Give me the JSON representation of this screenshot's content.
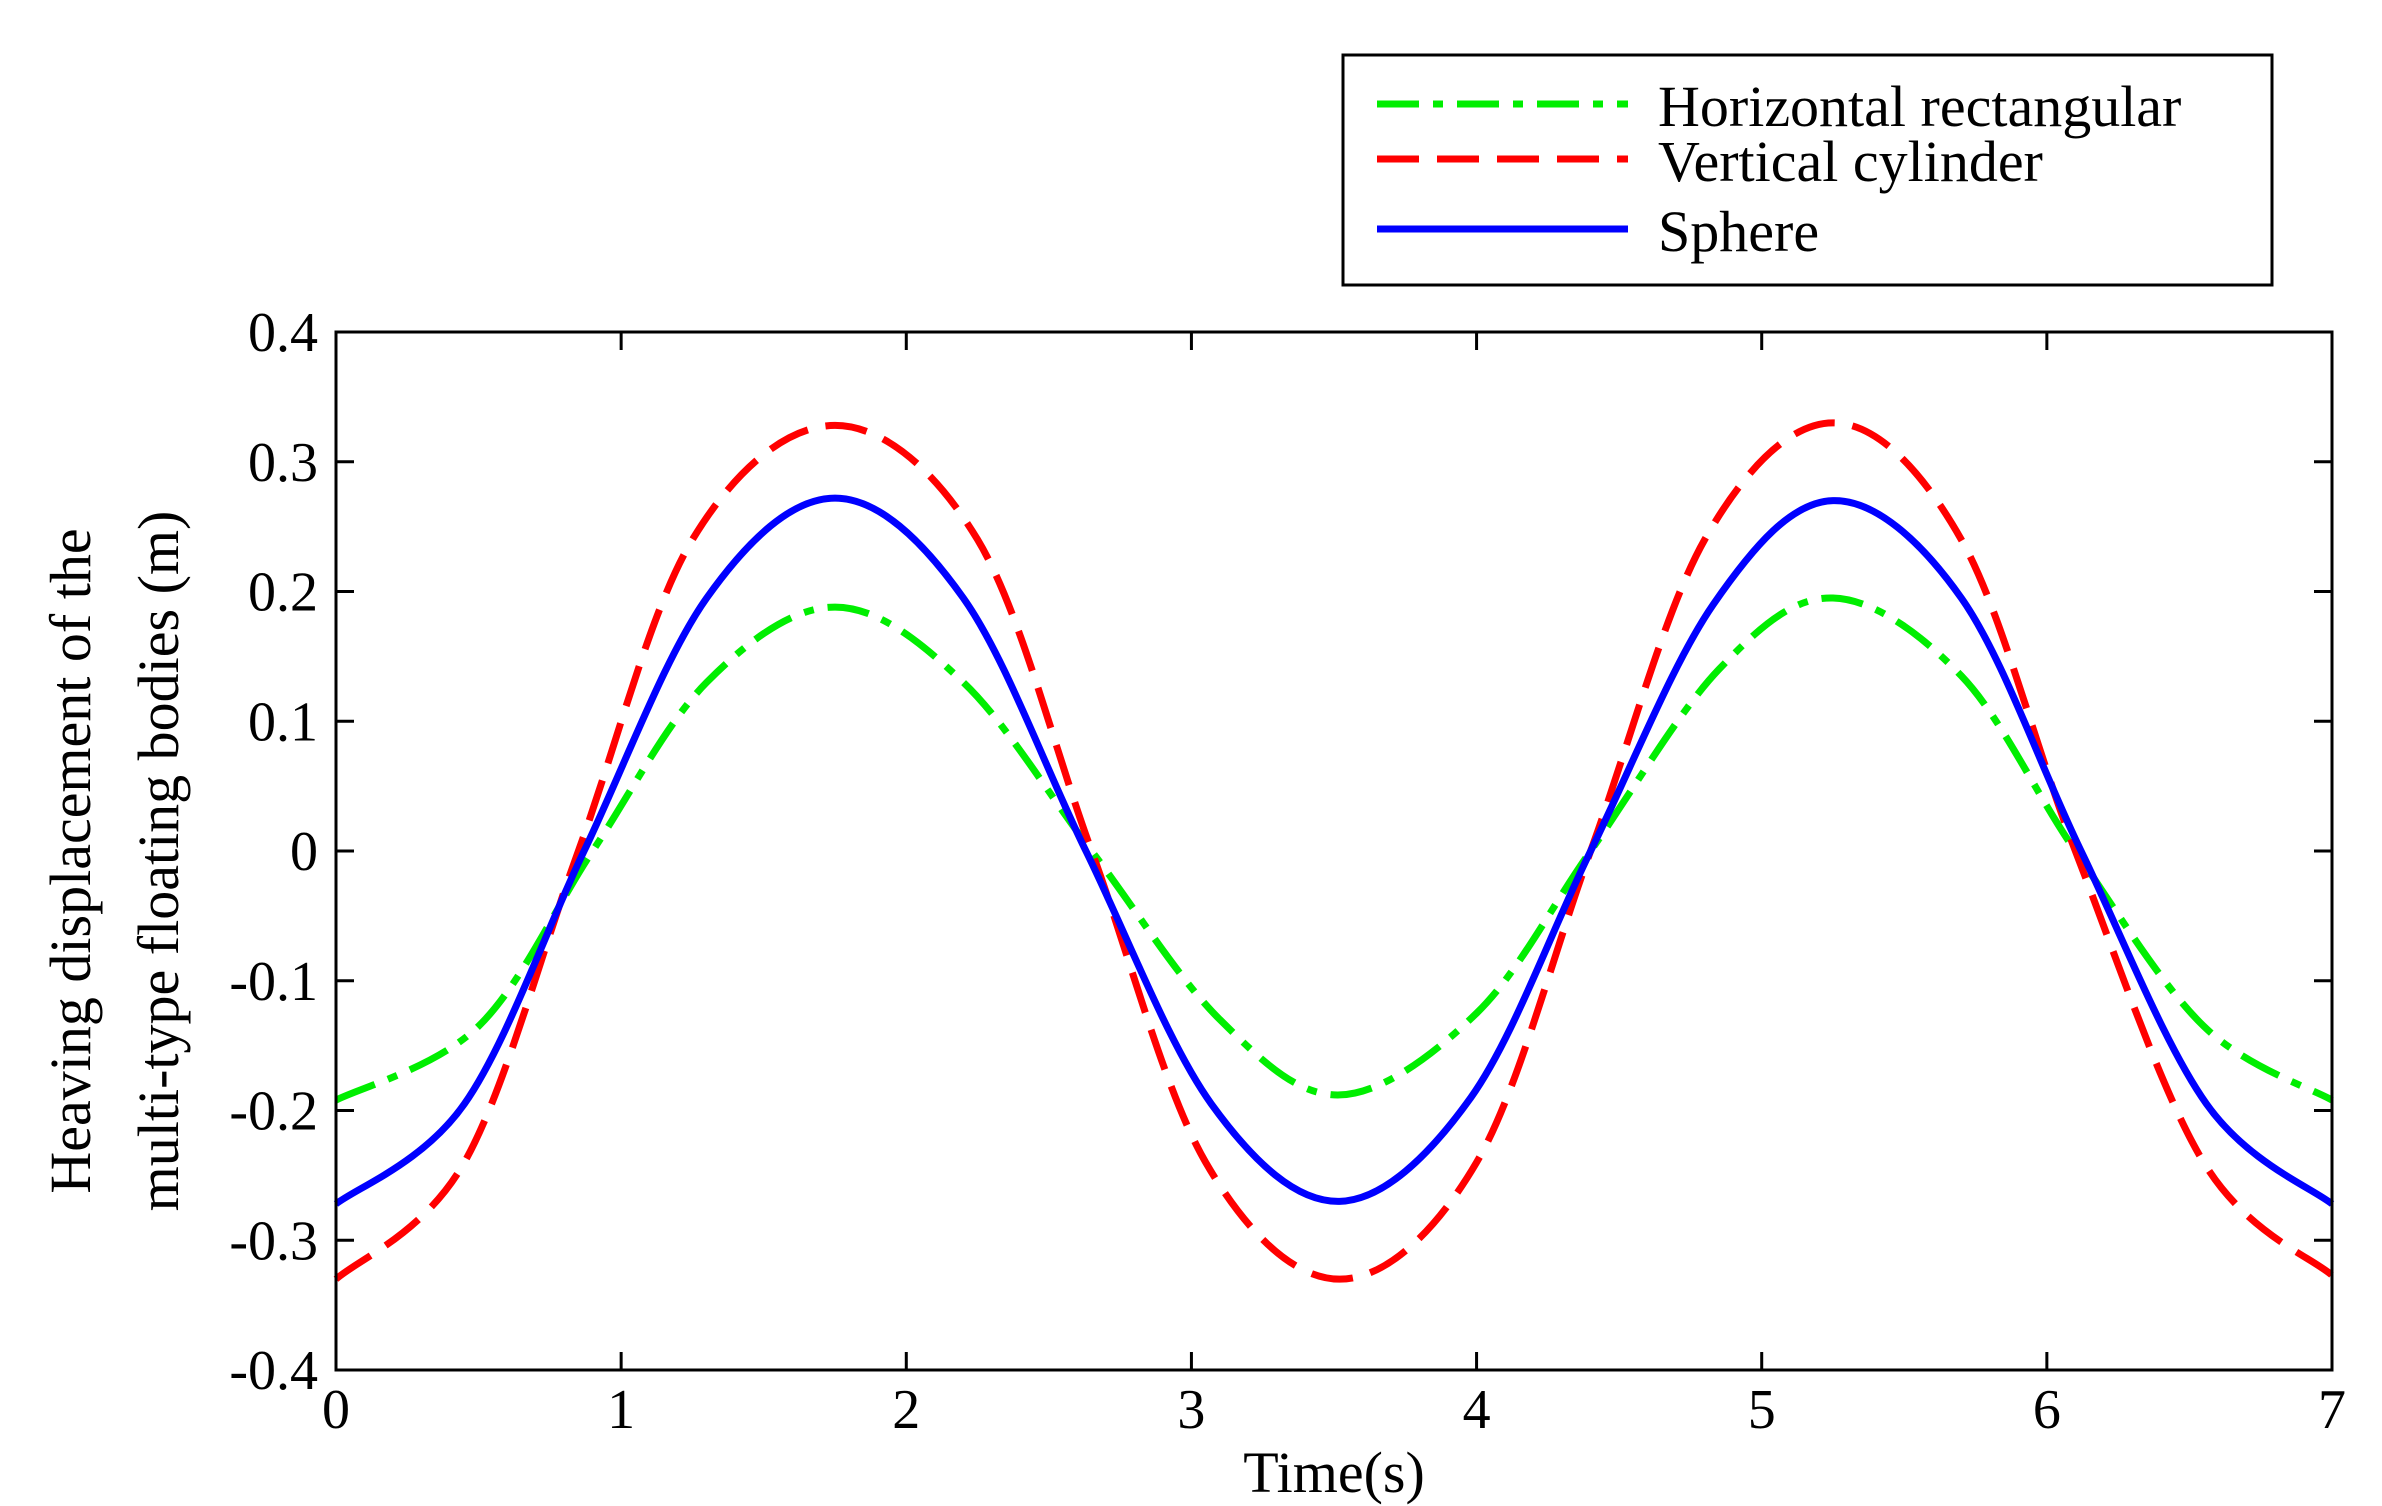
{
  "chart_data": {
    "type": "line",
    "title": "",
    "xlabel": "Time(s)",
    "ylabel_line1": "Heaving displacement of the",
    "ylabel_line2": "multi-type floating bodies (m)",
    "xlim": [
      0,
      7
    ],
    "ylim": [
      -0.4,
      0.4
    ],
    "xticks": [
      0,
      1,
      2,
      3,
      4,
      5,
      6,
      7
    ],
    "xtick_labels": [
      "0",
      "1",
      "2",
      "3",
      "4",
      "5",
      "6",
      "7"
    ],
    "yticks": [
      -0.4,
      -0.3,
      -0.2,
      -0.1,
      0,
      0.1,
      0.2,
      0.3,
      0.4
    ],
    "ytick_labels": [
      "-0.4",
      "-0.3",
      "-0.2",
      "-0.1",
      "0",
      "0.1",
      "0.2",
      "0.3",
      "0.4"
    ],
    "grid": false,
    "legend_position": "top-right, outside above plot",
    "series": [
      {
        "name": "Horizontal rectangular",
        "color": "#00ee00",
        "style": "dash-dot",
        "x": [
          0,
          0.5,
          0.9,
          1.3,
          1.75,
          2.2,
          2.65,
          3.1,
          3.52,
          4.0,
          4.4,
          4.85,
          5.25,
          5.7,
          6.1,
          6.55,
          7.0
        ],
        "y": [
          -0.192,
          -0.135,
          0.0,
          0.13,
          0.188,
          0.13,
          0.0,
          -0.13,
          -0.188,
          -0.125,
          0.0,
          0.14,
          0.195,
          0.135,
          0.0,
          -0.135,
          -0.192
        ]
      },
      {
        "name": "Vertical cylinder",
        "color": "#ff0000",
        "style": "dashed",
        "x": [
          0,
          0.45,
          0.85,
          1.25,
          1.75,
          2.25,
          2.65,
          3.05,
          3.52,
          4.0,
          4.4,
          4.8,
          5.25,
          5.7,
          6.1,
          6.55,
          7.0
        ],
        "y": [
          -0.33,
          -0.24,
          0.0,
          0.24,
          0.328,
          0.24,
          0.0,
          -0.24,
          -0.33,
          -0.24,
          0.0,
          0.24,
          0.33,
          0.24,
          0.0,
          -0.24,
          -0.327
        ]
      },
      {
        "name": "Sphere",
        "color": "#0000ff",
        "style": "solid",
        "x": [
          0,
          0.45,
          0.87,
          1.3,
          1.75,
          2.2,
          2.63,
          3.07,
          3.52,
          3.98,
          4.4,
          4.83,
          5.25,
          5.7,
          6.12,
          6.56,
          7.0
        ],
        "y": [
          -0.272,
          -0.195,
          0.0,
          0.195,
          0.272,
          0.195,
          0.0,
          -0.195,
          -0.27,
          -0.19,
          0.0,
          0.19,
          0.27,
          0.195,
          0.0,
          -0.195,
          -0.272
        ]
      }
    ]
  }
}
